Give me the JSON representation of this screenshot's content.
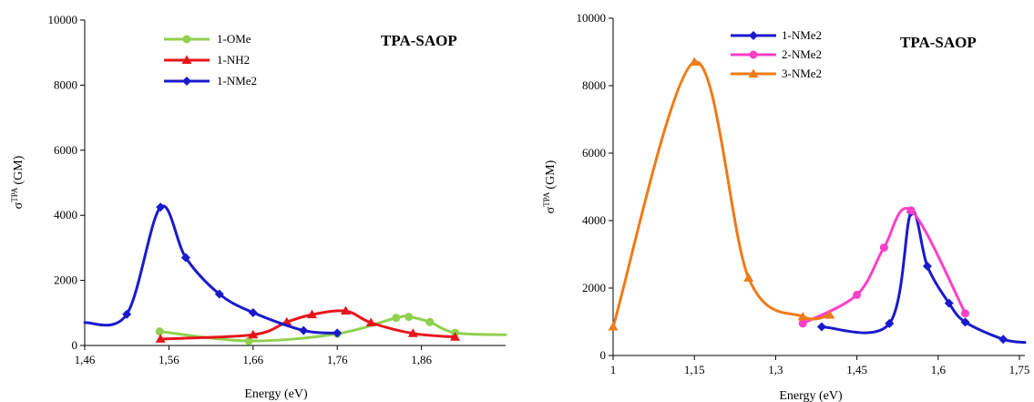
{
  "chart_data": [
    {
      "type": "line",
      "title": "TPA-SAOP",
      "xlabel": "Energy (eV)",
      "ylabel_main": "σ",
      "ylabel_sup": "TPA",
      "ylabel_unit": "(GM)",
      "xlim": [
        1.46,
        1.96
      ],
      "ylim": [
        0,
        10000
      ],
      "xticks": [
        1.46,
        1.56,
        1.66,
        1.76,
        1.86
      ],
      "xtick_labels": [
        "1,46",
        "1,56",
        "1,66",
        "1,76",
        "1,86"
      ],
      "yticks": [
        0,
        2000,
        4000,
        6000,
        8000,
        10000
      ],
      "ytick_labels": [
        "0",
        "2000",
        "4000",
        "6000",
        "8000",
        "10000"
      ],
      "legend_position": "top-left",
      "series": [
        {
          "name": "1-OMe",
          "color": "#8fd14f",
          "marker": "circle",
          "x": [
            1.549,
            1.655,
            1.76,
            1.83,
            1.845,
            1.87,
            1.9,
            1.96
          ],
          "y": [
            430,
            140,
            360,
            850,
            880,
            720,
            390,
            330
          ]
        },
        {
          "name": "1-NH2",
          "color": "#e8141b",
          "marker": "triangle",
          "x": [
            1.55,
            1.66,
            1.7,
            1.73,
            1.77,
            1.8,
            1.85,
            1.9
          ],
          "y": [
            200,
            330,
            720,
            950,
            1060,
            700,
            370,
            260
          ]
        },
        {
          "name": "1-NMe2",
          "color": "#1a1acc",
          "marker": "diamond",
          "x": [
            1.46,
            1.51,
            1.55,
            1.58,
            1.62,
            1.66,
            1.72,
            1.76
          ],
          "y": [
            700,
            960,
            4250,
            2700,
            1580,
            1010,
            460,
            380
          ]
        }
      ]
    },
    {
      "type": "line",
      "title": "TPA-SAOP",
      "xlabel": "Energy (eV)",
      "ylabel_main": "σ",
      "ylabel_sup": "TPA",
      "ylabel_unit": "(GM)",
      "xlim": [
        1,
        1.76
      ],
      "ylim": [
        0,
        10000
      ],
      "xticks": [
        1,
        1.15,
        1.3,
        1.45,
        1.6,
        1.75
      ],
      "xtick_labels": [
        "1",
        "1,15",
        "1,3",
        "1,45",
        "1,6",
        "1,75"
      ],
      "yticks": [
        0,
        2000,
        4000,
        6000,
        8000,
        10000
      ],
      "ytick_labels": [
        "0",
        "2000",
        "4000",
        "6000",
        "8000",
        "10000"
      ],
      "legend_position": "top-left",
      "series": [
        {
          "name": "1-NMe2",
          "color": "#1a1acc",
          "marker": "diamond",
          "x": [
            1.385,
            1.51,
            1.55,
            1.58,
            1.62,
            1.65,
            1.72,
            1.76
          ],
          "y": [
            850,
            950,
            4250,
            2650,
            1550,
            990,
            480,
            390
          ]
        },
        {
          "name": "2-NMe2",
          "color": "#ff3fc8",
          "marker": "circle",
          "x": [
            1.35,
            1.45,
            1.5,
            1.55,
            1.65
          ],
          "y": [
            950,
            1800,
            3200,
            4300,
            1250
          ]
        },
        {
          "name": "3-NMe2",
          "color": "#f07a17",
          "marker": "triangle",
          "x": [
            1,
            1.15,
            1.25,
            1.35,
            1.4
          ],
          "y": [
            850,
            8700,
            2300,
            1150,
            1200
          ]
        }
      ]
    }
  ]
}
